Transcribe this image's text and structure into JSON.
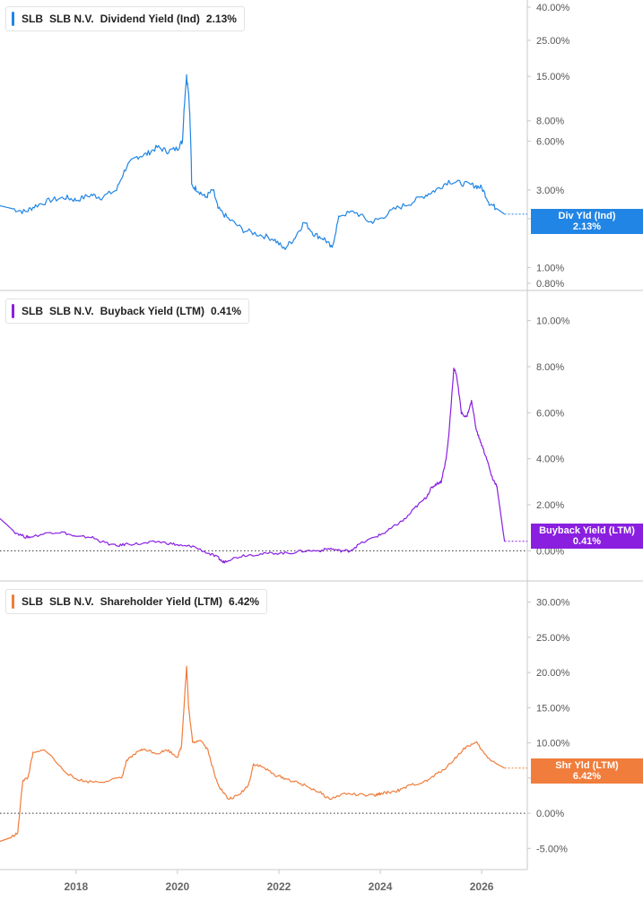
{
  "colors": {
    "dividend": "#2185e5",
    "buyback": "#8a1fe0",
    "shareholder": "#f07d3c"
  },
  "panels": [
    {
      "ticker": "SLB",
      "company": "SLB N.V.",
      "metric": "Dividend Yield (Ind)",
      "value": "2.13%",
      "flag_label": "Div Yld (Ind)",
      "flag_value": "2.13%"
    },
    {
      "ticker": "SLB",
      "company": "SLB N.V.",
      "metric": "Buyback Yield (LTM)",
      "value": "0.41%",
      "flag_label": "Buyback Yield (LTM)",
      "flag_value": "0.41%"
    },
    {
      "ticker": "SLB",
      "company": "SLB N.V.",
      "metric": "Shareholder Yield (LTM)",
      "value": "6.42%",
      "flag_label": "Shr Yld (LTM)",
      "flag_value": "6.42%"
    }
  ],
  "chart_data": [
    {
      "type": "line",
      "name": "Dividend Yield (Ind)",
      "scale": "log",
      "ylim": [
        0.8,
        40.0
      ],
      "y_ticks": [
        "40.00%",
        "25.00%",
        "15.00%",
        "8.00%",
        "6.00%",
        "3.00%",
        "2.00%",
        "1.00%",
        "0.80%"
      ],
      "x_ticks": [
        "2018",
        "2020",
        "2022",
        "2024",
        "2026"
      ],
      "xlim": [
        2016.5,
        2026.9
      ],
      "x": [
        2016.5,
        2016.75,
        2017.0,
        2017.2,
        2017.5,
        2017.8,
        2018.0,
        2018.3,
        2018.5,
        2018.8,
        2019.0,
        2019.2,
        2019.4,
        2019.6,
        2019.8,
        2020.0,
        2020.1,
        2020.18,
        2020.22,
        2020.28,
        2020.4,
        2020.55,
        2020.7,
        2020.8,
        2021.0,
        2021.3,
        2021.6,
        2021.9,
        2022.1,
        2022.3,
        2022.5,
        2022.7,
        2022.9,
        2023.05,
        2023.2,
        2023.5,
        2023.8,
        2024.0,
        2024.3,
        2024.6,
        2024.9,
        2025.1,
        2025.35,
        2025.6,
        2025.85,
        2026.0,
        2026.15,
        2026.3,
        2026.45
      ],
      "y": [
        2.4,
        2.3,
        2.2,
        2.4,
        2.6,
        2.7,
        2.6,
        2.8,
        2.7,
        3.0,
        4.2,
        4.8,
        5.0,
        5.5,
        5.2,
        5.4,
        6.0,
        15.0,
        12.0,
        3.2,
        3.0,
        2.7,
        3.0,
        2.3,
        2.0,
        1.7,
        1.6,
        1.5,
        1.3,
        1.5,
        1.9,
        1.6,
        1.5,
        1.3,
        2.1,
        2.2,
        1.9,
        2.0,
        2.3,
        2.5,
        2.8,
        3.0,
        3.4,
        3.3,
        3.2,
        3.1,
        2.5,
        2.3,
        2.13
      ]
    },
    {
      "type": "line",
      "name": "Buyback Yield (LTM)",
      "ylim": [
        -1.0,
        11.0
      ],
      "y_ticks": [
        "10.00%",
        "8.00%",
        "6.00%",
        "4.00%",
        "2.00%",
        "0.00%"
      ],
      "x": [
        2016.5,
        2016.8,
        2017.0,
        2017.1,
        2017.5,
        2017.75,
        2018.0,
        2018.3,
        2018.5,
        2018.8,
        2019.0,
        2019.3,
        2019.6,
        2019.9,
        2020.1,
        2020.3,
        2020.6,
        2020.8,
        2020.9,
        2021.0,
        2021.3,
        2021.6,
        2021.9,
        2022.2,
        2022.5,
        2022.8,
        2023.0,
        2023.2,
        2023.4,
        2023.6,
        2023.9,
        2024.1,
        2024.3,
        2024.5,
        2024.7,
        2024.9,
        2025.0,
        2025.1,
        2025.2,
        2025.3,
        2025.35,
        2025.45,
        2025.5,
        2025.6,
        2025.7,
        2025.8,
        2025.9,
        2026.0,
        2026.1,
        2026.2,
        2026.25,
        2026.3,
        2026.45
      ],
      "y": [
        1.4,
        0.8,
        0.6,
        0.6,
        0.8,
        0.8,
        0.6,
        0.6,
        0.4,
        0.2,
        0.3,
        0.3,
        0.4,
        0.3,
        0.2,
        0.2,
        -0.1,
        -0.3,
        -0.5,
        -0.4,
        -0.2,
        -0.15,
        -0.1,
        -0.1,
        0.0,
        0.0,
        0.1,
        0.0,
        0.0,
        0.3,
        0.6,
        0.8,
        1.1,
        1.4,
        1.9,
        2.3,
        2.7,
        2.9,
        3.0,
        4.0,
        5.0,
        7.9,
        7.7,
        6.0,
        5.8,
        6.5,
        5.2,
        4.6,
        4.0,
        3.2,
        3.0,
        2.8,
        0.41
      ]
    },
    {
      "type": "line",
      "name": "Shareholder Yield (LTM)",
      "ylim": [
        -7.0,
        32.0
      ],
      "y_ticks": [
        "30.00%",
        "25.00%",
        "20.00%",
        "15.00%",
        "10.00%",
        "5.00%",
        "0.00%",
        "-5.00%"
      ],
      "x": [
        2016.5,
        2016.7,
        2016.85,
        2016.95,
        2017.05,
        2017.15,
        2017.4,
        2017.7,
        2017.95,
        2018.2,
        2018.5,
        2018.9,
        2019.0,
        2019.1,
        2019.25,
        2019.4,
        2019.6,
        2019.8,
        2020.0,
        2020.08,
        2020.18,
        2020.22,
        2020.3,
        2020.45,
        2020.6,
        2020.75,
        2020.85,
        2021.0,
        2021.2,
        2021.4,
        2021.5,
        2021.7,
        2021.9,
        2022.1,
        2022.3,
        2022.5,
        2022.8,
        2023.0,
        2023.3,
        2023.6,
        2023.9,
        2024.0,
        2024.2,
        2024.4,
        2024.6,
        2024.9,
        2025.1,
        2025.3,
        2025.5,
        2025.7,
        2025.9,
        2026.1,
        2026.3,
        2026.45
      ],
      "y": [
        -4.0,
        -3.5,
        -2.8,
        4.7,
        5.0,
        8.5,
        9.0,
        6.5,
        5.0,
        4.5,
        4.5,
        5.0,
        7.5,
        8.0,
        9.0,
        9.0,
        8.5,
        9.0,
        8.0,
        9.5,
        21.0,
        15.0,
        10.0,
        10.5,
        9.0,
        5.0,
        3.5,
        2.0,
        2.5,
        4.0,
        7.0,
        6.5,
        5.5,
        5.0,
        4.5,
        4.0,
        3.0,
        2.0,
        2.8,
        2.6,
        2.5,
        2.8,
        3.0,
        3.3,
        4.0,
        4.5,
        5.5,
        6.5,
        8.0,
        9.5,
        10.0,
        8.0,
        7.0,
        6.42
      ]
    }
  ]
}
